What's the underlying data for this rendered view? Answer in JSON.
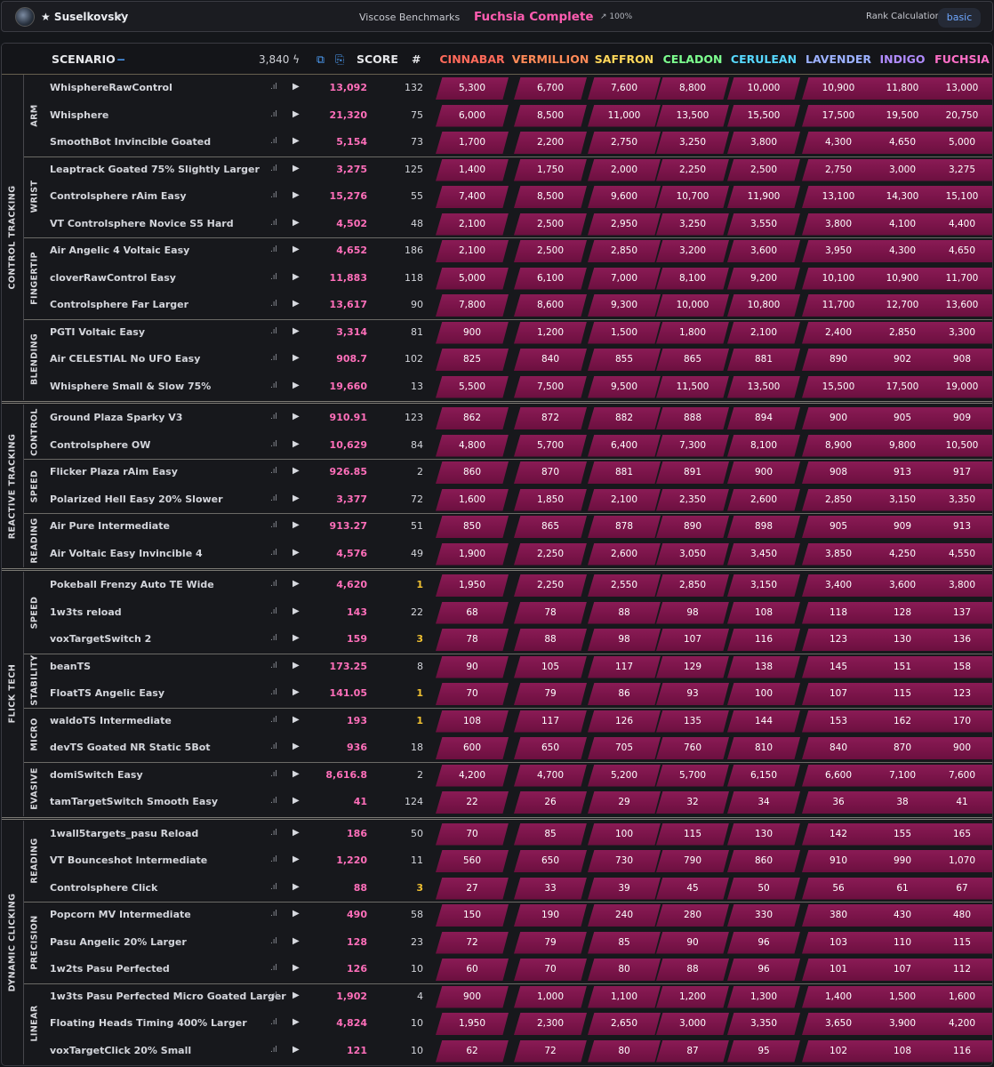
{
  "header": {
    "username": "★ Suselkovsky",
    "verified_icon": "✔",
    "benchmark_name": "Viscose Benchmarks",
    "rank_title": "Fuchsia Complete",
    "progress": "↗ 100%",
    "rank_calc_label": "Rank Calculation",
    "mode": "basic"
  },
  "table": {
    "scenario_label": "SCENARIO",
    "collapse_toggle": "−",
    "total_energy": "3,840 ϟ",
    "copy_icon": "⧉",
    "paste_icon": "⎘",
    "score_label": "SCORE",
    "rank_label": "#",
    "ranks": [
      {
        "name": "CINNABAR",
        "color": "#ff6a5a"
      },
      {
        "name": "VERMILLION",
        "color": "#ff8a57"
      },
      {
        "name": "SAFFRON",
        "color": "#ffd75a"
      },
      {
        "name": "CELADON",
        "color": "#7dff8f"
      },
      {
        "name": "CERULEAN",
        "color": "#57d8ff"
      },
      {
        "name": "LAVENDER",
        "color": "#9cb1ff"
      },
      {
        "name": "INDIGO",
        "color": "#b18cff"
      },
      {
        "name": "FUCHSIA",
        "color": "#ff6fc8"
      }
    ]
  },
  "categories": [
    {
      "name": "CONTROL TRACKING",
      "subcategories": [
        {
          "name": "ARM",
          "scenarios": [
            {
              "name": "WhisphereRawControl",
              "score": "13,092",
              "rank": "132",
              "thresholds": [
                "5,300",
                "6,700",
                "7,600",
                "8,800",
                "10,000",
                "10,900",
                "11,800",
                "13,000"
              ]
            },
            {
              "name": "Whisphere",
              "score": "21,320",
              "rank": "75",
              "thresholds": [
                "6,000",
                "8,500",
                "11,000",
                "13,500",
                "15,500",
                "17,500",
                "19,500",
                "20,750"
              ]
            },
            {
              "name": "SmoothBot Invincible Goated",
              "score": "5,154",
              "rank": "73",
              "thresholds": [
                "1,700",
                "2,200",
                "2,750",
                "3,250",
                "3,800",
                "4,300",
                "4,650",
                "5,000"
              ]
            }
          ]
        },
        {
          "name": "WRIST",
          "scenarios": [
            {
              "name": "Leaptrack Goated 75% Slightly Larger",
              "score": "3,275",
              "rank": "125",
              "thresholds": [
                "1,400",
                "1,750",
                "2,000",
                "2,250",
                "2,500",
                "2,750",
                "3,000",
                "3,275"
              ]
            },
            {
              "name": "Controlsphere rAim Easy",
              "score": "15,276",
              "rank": "55",
              "thresholds": [
                "7,400",
                "8,500",
                "9,600",
                "10,700",
                "11,900",
                "13,100",
                "14,300",
                "15,100"
              ]
            },
            {
              "name": "VT Controlsphere Novice S5 Hard",
              "score": "4,502",
              "rank": "48",
              "thresholds": [
                "2,100",
                "2,500",
                "2,950",
                "3,250",
                "3,550",
                "3,800",
                "4,100",
                "4,400"
              ]
            }
          ]
        },
        {
          "name": "FINGERTIP",
          "scenarios": [
            {
              "name": "Air Angelic 4 Voltaic Easy",
              "score": "4,652",
              "rank": "186",
              "thresholds": [
                "2,100",
                "2,500",
                "2,850",
                "3,200",
                "3,600",
                "3,950",
                "4,300",
                "4,650"
              ]
            },
            {
              "name": "cloverRawControl Easy",
              "score": "11,883",
              "rank": "118",
              "thresholds": [
                "5,000",
                "6,100",
                "7,000",
                "8,100",
                "9,200",
                "10,100",
                "10,900",
                "11,700"
              ]
            },
            {
              "name": "Controlsphere Far Larger",
              "score": "13,617",
              "rank": "90",
              "thresholds": [
                "7,800",
                "8,600",
                "9,300",
                "10,000",
                "10,800",
                "11,700",
                "12,700",
                "13,600"
              ]
            }
          ]
        },
        {
          "name": "BLENDING",
          "scenarios": [
            {
              "name": "PGTI Voltaic Easy",
              "score": "3,314",
              "rank": "81",
              "thresholds": [
                "900",
                "1,200",
                "1,500",
                "1,800",
                "2,100",
                "2,400",
                "2,850",
                "3,300"
              ]
            },
            {
              "name": "Air CELESTIAL No UFO Easy",
              "score": "908.7",
              "rank": "102",
              "thresholds": [
                "825",
                "840",
                "855",
                "865",
                "881",
                "890",
                "902",
                "908"
              ]
            },
            {
              "name": "Whisphere Small & Slow 75%",
              "score": "19,660",
              "rank": "13",
              "thresholds": [
                "5,500",
                "7,500",
                "9,500",
                "11,500",
                "13,500",
                "15,500",
                "17,500",
                "19,000"
              ]
            }
          ]
        }
      ]
    },
    {
      "name": "REACTIVE TRACKING",
      "subcategories": [
        {
          "name": "CONTROL",
          "scenarios": [
            {
              "name": "Ground Plaza Sparky V3",
              "score": "910.91",
              "rank": "123",
              "thresholds": [
                "862",
                "872",
                "882",
                "888",
                "894",
                "900",
                "905",
                "909"
              ]
            },
            {
              "name": "Controlsphere OW",
              "score": "10,629",
              "rank": "84",
              "thresholds": [
                "4,800",
                "5,700",
                "6,400",
                "7,300",
                "8,100",
                "8,900",
                "9,800",
                "10,500"
              ]
            }
          ]
        },
        {
          "name": "SPEED",
          "scenarios": [
            {
              "name": "Flicker Plaza rAim Easy",
              "score": "926.85",
              "rank": "2",
              "thresholds": [
                "860",
                "870",
                "881",
                "891",
                "900",
                "908",
                "913",
                "917"
              ]
            },
            {
              "name": "Polarized Hell Easy 20% Slower",
              "score": "3,377",
              "rank": "72",
              "thresholds": [
                "1,600",
                "1,850",
                "2,100",
                "2,350",
                "2,600",
                "2,850",
                "3,150",
                "3,350"
              ]
            }
          ]
        },
        {
          "name": "READING",
          "scenarios": [
            {
              "name": "Air Pure Intermediate",
              "score": "913.27",
              "rank": "51",
              "thresholds": [
                "850",
                "865",
                "878",
                "890",
                "898",
                "905",
                "909",
                "913"
              ]
            },
            {
              "name": "Air Voltaic Easy Invincible 4",
              "score": "4,576",
              "rank": "49",
              "thresholds": [
                "1,900",
                "2,250",
                "2,600",
                "3,050",
                "3,450",
                "3,850",
                "4,250",
                "4,550"
              ]
            }
          ]
        }
      ]
    },
    {
      "name": "FLICK TECH",
      "subcategories": [
        {
          "name": "SPEED",
          "scenarios": [
            {
              "name": "Pokeball Frenzy Auto TE Wide",
              "score": "4,620",
              "rank": "1",
              "thresholds": [
                "1,950",
                "2,250",
                "2,550",
                "2,850",
                "3,150",
                "3,400",
                "3,600",
                "3,800"
              ]
            },
            {
              "name": "1w3ts reload",
              "score": "143",
              "rank": "22",
              "thresholds": [
                "68",
                "78",
                "88",
                "98",
                "108",
                "118",
                "128",
                "137"
              ]
            },
            {
              "name": "voxTargetSwitch 2",
              "score": "159",
              "rank": "3",
              "thresholds": [
                "78",
                "88",
                "98",
                "107",
                "116",
                "123",
                "130",
                "136"
              ]
            }
          ]
        },
        {
          "name": "STABILITY",
          "scenarios": [
            {
              "name": "beanTS",
              "score": "173.25",
              "rank": "8",
              "thresholds": [
                "90",
                "105",
                "117",
                "129",
                "138",
                "145",
                "151",
                "158"
              ]
            },
            {
              "name": "FloatTS Angelic Easy",
              "score": "141.05",
              "rank": "1",
              "thresholds": [
                "70",
                "79",
                "86",
                "93",
                "100",
                "107",
                "115",
                "123"
              ]
            }
          ]
        },
        {
          "name": "MICRO",
          "scenarios": [
            {
              "name": "waldoTS Intermediate",
              "score": "193",
              "rank": "1",
              "thresholds": [
                "108",
                "117",
                "126",
                "135",
                "144",
                "153",
                "162",
                "170"
              ]
            },
            {
              "name": "devTS Goated NR Static 5Bot",
              "score": "936",
              "rank": "18",
              "thresholds": [
                "600",
                "650",
                "705",
                "760",
                "810",
                "840",
                "870",
                "900"
              ]
            }
          ]
        },
        {
          "name": "EVASIVE",
          "scenarios": [
            {
              "name": "domiSwitch Easy",
              "score": "8,616.8",
              "rank": "2",
              "thresholds": [
                "4,200",
                "4,700",
                "5,200",
                "5,700",
                "6,150",
                "6,600",
                "7,100",
                "7,600"
              ]
            },
            {
              "name": "tamTargetSwitch Smooth Easy",
              "score": "41",
              "rank": "124",
              "thresholds": [
                "22",
                "26",
                "29",
                "32",
                "34",
                "36",
                "38",
                "41"
              ]
            }
          ]
        }
      ]
    },
    {
      "name": "DYNAMIC CLICKING",
      "subcategories": [
        {
          "name": "READING",
          "scenarios": [
            {
              "name": "1wall5targets_pasu Reload",
              "score": "186",
              "rank": "50",
              "thresholds": [
                "70",
                "85",
                "100",
                "115",
                "130",
                "142",
                "155",
                "165"
              ]
            },
            {
              "name": "VT Bounceshot Intermediate",
              "score": "1,220",
              "rank": "11",
              "thresholds": [
                "560",
                "650",
                "730",
                "790",
                "860",
                "910",
                "990",
                "1,070"
              ]
            },
            {
              "name": "Controlsphere Click",
              "score": "88",
              "rank": "3",
              "thresholds": [
                "27",
                "33",
                "39",
                "45",
                "50",
                "56",
                "61",
                "67"
              ]
            }
          ]
        },
        {
          "name": "PRECISION",
          "scenarios": [
            {
              "name": "Popcorn MV Intermediate",
              "score": "490",
              "rank": "58",
              "thresholds": [
                "150",
                "190",
                "240",
                "280",
                "330",
                "380",
                "430",
                "480"
              ]
            },
            {
              "name": "Pasu Angelic 20% Larger",
              "score": "128",
              "rank": "23",
              "thresholds": [
                "72",
                "79",
                "85",
                "90",
                "96",
                "103",
                "110",
                "115"
              ]
            },
            {
              "name": "1w2ts Pasu Perfected",
              "score": "126",
              "rank": "10",
              "thresholds": [
                "60",
                "70",
                "80",
                "88",
                "96",
                "101",
                "107",
                "112"
              ]
            }
          ]
        },
        {
          "name": "LINEAR",
          "scenarios": [
            {
              "name": "1w3ts Pasu Perfected Micro Goated Larger",
              "score": "1,902",
              "rank": "4",
              "thresholds": [
                "900",
                "1,000",
                "1,100",
                "1,200",
                "1,300",
                "1,400",
                "1,500",
                "1,600"
              ]
            },
            {
              "name": "Floating Heads Timing 400% Larger",
              "score": "4,824",
              "rank": "10",
              "thresholds": [
                "1,950",
                "2,300",
                "2,650",
                "3,000",
                "3,350",
                "3,650",
                "3,900",
                "4,200"
              ]
            },
            {
              "name": "voxTargetClick 20% Small",
              "score": "121",
              "rank": "10",
              "thresholds": [
                "62",
                "72",
                "80",
                "87",
                "95",
                "102",
                "108",
                "116"
              ]
            }
          ]
        }
      ]
    }
  ]
}
